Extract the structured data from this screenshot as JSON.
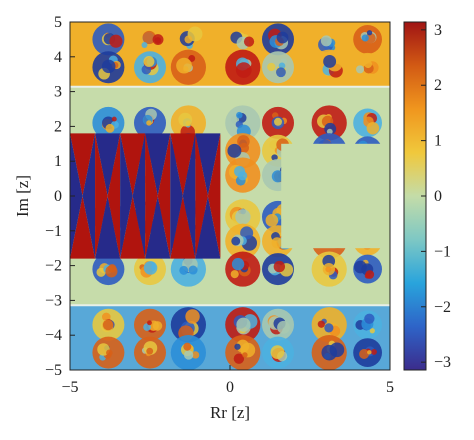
{
  "chart_data": {
    "type": "heatmap",
    "title": "",
    "xlabel": "Rr [z]",
    "ylabel": "Im [z]",
    "xlim": [
      -5,
      5
    ],
    "ylim": [
      -5,
      5
    ],
    "x_ticks": [
      "−5",
      "0",
      "5"
    ],
    "y_ticks": [
      "5",
      "4",
      "3",
      "2",
      "1",
      "0",
      "−1",
      "−2",
      "−3",
      "−4",
      "−5"
    ],
    "colorbar": {
      "range": [
        -3.1416,
        3.1416
      ],
      "ticks": [
        "3",
        "2",
        "1",
        "0",
        "−1",
        "−2",
        "−3"
      ],
      "colormap": [
        "#3b2c8c",
        "#2e64c8",
        "#29a4dc",
        "#7ec8c4",
        "#c4dca8",
        "#f0c83c",
        "#f0961e",
        "#d25a14",
        "#a01414"
      ]
    },
    "regions": {
      "strip_boundaries_im": [
        3.14,
        -3.14
      ],
      "left_checkerboard_colors": [
        "#b0140e",
        "#262a8a"
      ],
      "right_plateau_color": "#c6dcaa",
      "top_band_color": "#f0b02a",
      "bottom_band_color": "#58a8d8"
    },
    "grid": false,
    "legend": "none"
  }
}
